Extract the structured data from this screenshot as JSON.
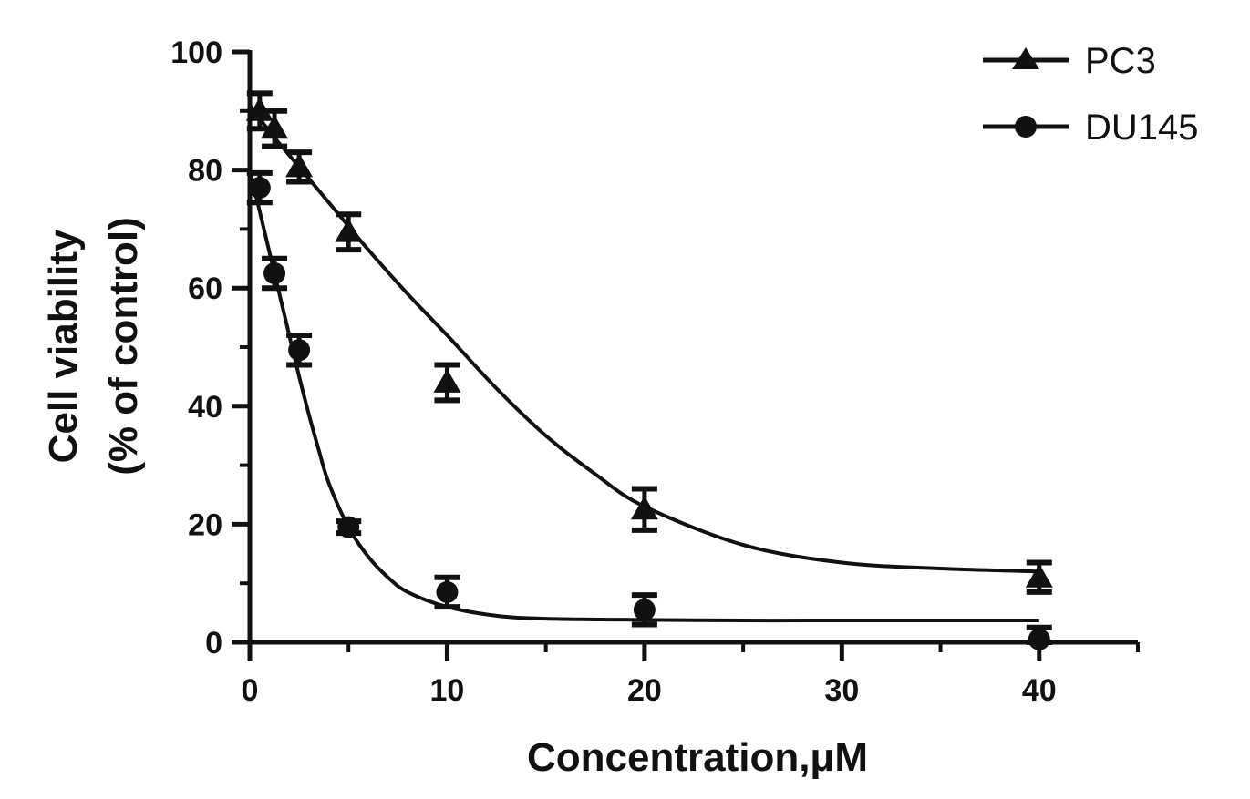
{
  "chart_data": {
    "type": "line",
    "title": "",
    "xlabel": "Concentration,μM",
    "ylabel_line1": "Cell viability",
    "ylabel_line2": "(% of control)",
    "xlim": [
      0,
      45
    ],
    "ylim": [
      0,
      100
    ],
    "xticks": [
      0,
      10,
      20,
      30,
      40
    ],
    "xminor": [
      5,
      15,
      25,
      35,
      45
    ],
    "yticks": [
      0,
      20,
      40,
      60,
      80,
      100
    ],
    "yminor": [
      10,
      30,
      50,
      70,
      90
    ],
    "grid": false,
    "legend_position": "top-right",
    "series": [
      {
        "name": "PC3",
        "marker": "triangle",
        "x": [
          0.5,
          1.25,
          2.5,
          5,
          10,
          20,
          40
        ],
        "y": [
          90,
          87,
          80.5,
          69.5,
          44,
          22.5,
          11
        ],
        "error": [
          3,
          3,
          2.5,
          3,
          3,
          3.5,
          2.5
        ],
        "fit_x": [
          0,
          1,
          2,
          3,
          4,
          5,
          6,
          8,
          10,
          12.5,
          15,
          17.5,
          20,
          25,
          30,
          35,
          40
        ],
        "fit_y": [
          91,
          86.5,
          82.5,
          78.5,
          74.5,
          70.5,
          66.5,
          59,
          52,
          43,
          35,
          28.5,
          23,
          16.5,
          13.5,
          12.5,
          12
        ]
      },
      {
        "name": "DU145",
        "marker": "circle",
        "x": [
          0.5,
          1.25,
          2.5,
          5,
          10,
          20,
          40
        ],
        "y": [
          77,
          62.5,
          49.5,
          19.5,
          8.5,
          5.5,
          0.5
        ],
        "error": [
          2.5,
          2.5,
          2.5,
          1,
          2.5,
          2.5,
          2
        ],
        "fit_x": [
          0,
          0.5,
          1,
          1.5,
          2,
          2.5,
          3,
          3.5,
          4,
          5,
          6,
          7,
          8,
          10,
          12.5,
          15,
          20,
          25,
          30,
          40
        ],
        "fit_y": [
          80,
          73,
          66,
          59,
          52,
          45,
          38.5,
          32.5,
          27,
          19.5,
          14.5,
          11,
          8.5,
          6,
          4.5,
          4,
          3.8,
          3.7,
          3.7,
          3.7
        ]
      }
    ]
  }
}
